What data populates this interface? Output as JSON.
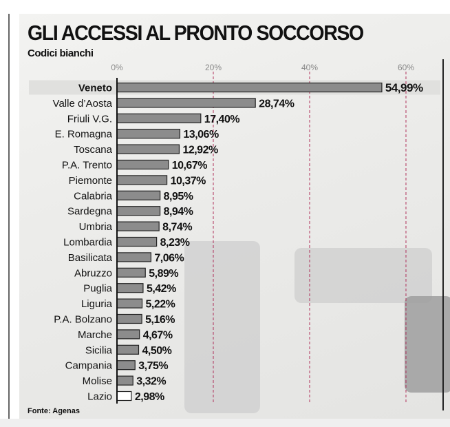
{
  "title": "GLI ACCESSI AL PRONTO SOCCORSO",
  "subtitle": "Codici bianchi",
  "source": "Fonte: Agenas",
  "chart_data": {
    "type": "bar",
    "orientation": "horizontal",
    "title": "GLI ACCESSI AL PRONTO SOCCORSO",
    "subtitle": "Codici bianchi",
    "xlim": [
      0,
      65
    ],
    "xticks": [
      "0%",
      "20%",
      "40%",
      "60%"
    ],
    "xtick_values": [
      0,
      20,
      40,
      60
    ],
    "grid": "dashed vertical at 20%, 40%, 60%",
    "highlight": "Veneto",
    "bar_color": "#8c8c8c",
    "highlight_color": "#e0e0de",
    "categories": [
      "Veneto",
      "Valle d’Aosta",
      "Friuli V.G.",
      "E. Romagna",
      "Toscana",
      "P.A. Trento",
      "Piemonte",
      "Calabria",
      "Sardegna",
      "Umbria",
      "Lombardia",
      "Basilicata",
      "Abruzzo",
      "Puglia",
      "Liguria",
      "P.A. Bolzano",
      "Marche",
      "Sicilia",
      "Campania",
      "Molise",
      "Lazio"
    ],
    "values": [
      54.99,
      28.74,
      17.4,
      13.06,
      12.92,
      10.67,
      10.37,
      8.95,
      8.94,
      8.74,
      8.23,
      7.06,
      5.89,
      5.42,
      5.22,
      5.16,
      4.67,
      4.5,
      3.75,
      3.32,
      2.98
    ],
    "labels": [
      "54,99%",
      "28,74%",
      "17,40%",
      "13,06%",
      "12,92%",
      "10,67%",
      "10,37%",
      "8,95%",
      "8,94%",
      "8,74%",
      "8,23%",
      "7,06%",
      "5,89%",
      "5,42%",
      "5,22%",
      "5,16%",
      "4,67%",
      "4,50%",
      "3,75%",
      "3,32%",
      "2,98%"
    ]
  }
}
